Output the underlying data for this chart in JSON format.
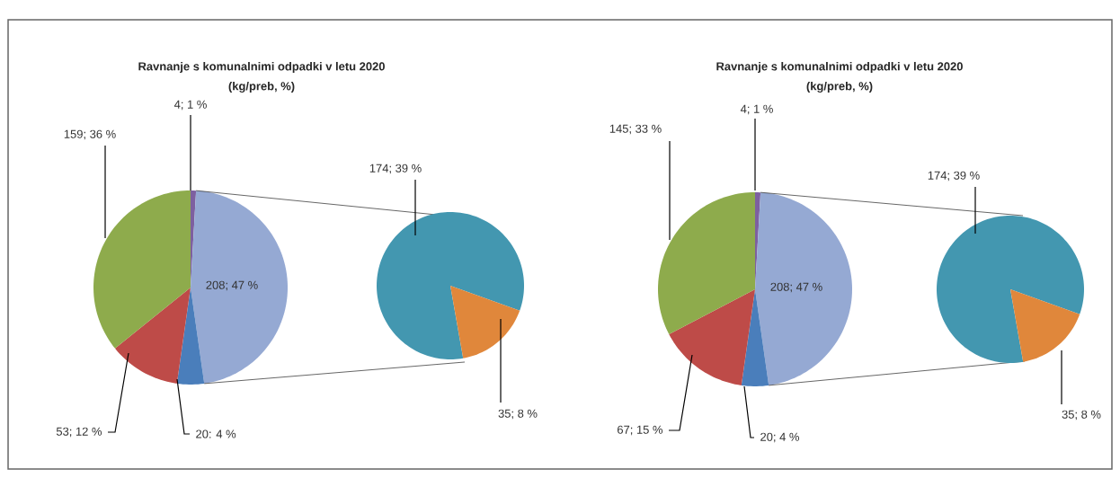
{
  "chart_data": [
    {
      "type": "pie",
      "title": "Ravnanje s komunalnimi odpadki v letu 2020",
      "subtitle": "(kg/preb, %)",
      "categories": [
        null,
        null,
        null,
        null,
        null
      ],
      "values": [
        4,
        208,
        20,
        53,
        159
      ],
      "colors": [
        "#7d60a0",
        "#95a9d3",
        "#4a7ebb",
        "#be4b48",
        "#8eab4c"
      ],
      "value_labels": [
        "4; 1 %",
        "208; 47 %",
        "20: 4 %",
        "53; 12 %",
        "159; 36 %"
      ]
    },
    {
      "type": "pie",
      "categories": [
        null,
        null
      ],
      "values": [
        174,
        35
      ],
      "colors": [
        "#4397b0",
        "#e0873b"
      ],
      "value_labels": [
        "174; 39 %",
        "35; 8 %"
      ]
    },
    {
      "type": "pie",
      "title": "Ravnanje s komunalnimi odpadki v letu 2020",
      "subtitle": "(kg/preb, %)",
      "categories": [
        null,
        null,
        null,
        null,
        null
      ],
      "values": [
        4,
        208,
        20,
        67,
        145
      ],
      "colors": [
        "#7d60a0",
        "#95a9d3",
        "#4a7ebb",
        "#be4b48",
        "#8eab4c"
      ],
      "value_labels": [
        "4; 1 %",
        "208; 47 %",
        "20; 4 %",
        "67; 15 %",
        "145; 33 %"
      ]
    },
    {
      "type": "pie",
      "categories": [
        null,
        null
      ],
      "values": [
        174,
        35
      ],
      "colors": [
        "#4397b0",
        "#e0873b"
      ],
      "value_labels": [
        "174; 39 %",
        "35; 8 %"
      ]
    }
  ]
}
